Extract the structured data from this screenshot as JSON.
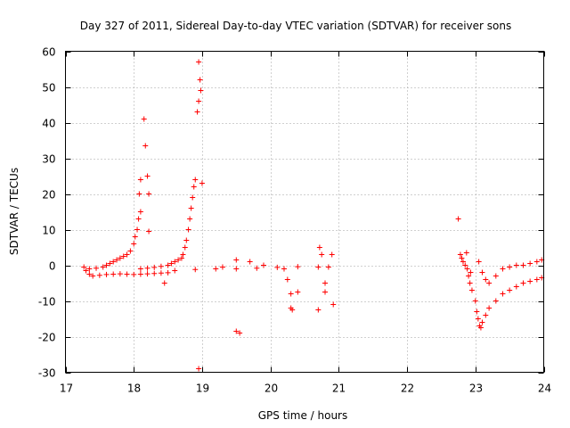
{
  "chart_data": {
    "type": "scatter",
    "title": "Day 327 of 2011, Sidereal Day-to-day VTEC variation (SDTVAR) for receiver sons",
    "xlabel": "GPS time / hours",
    "ylabel": "SDTVAR / TECUs",
    "xlim": [
      17,
      24
    ],
    "ylim": [
      -30,
      60
    ],
    "xticks": [
      17,
      18,
      19,
      20,
      21,
      22,
      23,
      24
    ],
    "yticks": [
      -30,
      -20,
      -10,
      0,
      10,
      20,
      30,
      40,
      50,
      60
    ],
    "grid": true,
    "marker": "+",
    "color": "#ff0000",
    "series": [
      {
        "name": "SDTVAR",
        "points": [
          [
            17.27,
            -0.5
          ],
          [
            17.3,
            -1.5
          ],
          [
            17.35,
            -2.5
          ],
          [
            17.4,
            -3
          ],
          [
            17.5,
            -2.8
          ],
          [
            17.6,
            -2.6
          ],
          [
            17.7,
            -2.5
          ],
          [
            17.8,
            -2.4
          ],
          [
            17.9,
            -2.5
          ],
          [
            18.0,
            -2.6
          ],
          [
            18.1,
            -2.5
          ],
          [
            18.2,
            -2.4
          ],
          [
            18.3,
            -2.3
          ],
          [
            18.4,
            -2.2
          ],
          [
            18.5,
            -2.1
          ],
          [
            17.35,
            -1
          ],
          [
            17.45,
            -0.8
          ],
          [
            17.55,
            -0.5
          ],
          [
            17.6,
            0
          ],
          [
            17.65,
            0.5
          ],
          [
            17.7,
            1
          ],
          [
            17.75,
            1.5
          ],
          [
            17.8,
            2
          ],
          [
            17.85,
            2.5
          ],
          [
            17.9,
            3
          ],
          [
            17.95,
            4
          ],
          [
            18.0,
            6
          ],
          [
            18.02,
            8
          ],
          [
            18.05,
            10
          ],
          [
            18.07,
            13
          ],
          [
            18.1,
            15
          ],
          [
            18.08,
            20
          ],
          [
            18.1,
            24
          ],
          [
            18.15,
            41
          ],
          [
            18.17,
            33.5
          ],
          [
            18.2,
            25
          ],
          [
            18.22,
            20
          ],
          [
            18.22,
            9.5
          ],
          [
            18.45,
            -5
          ],
          [
            18.1,
            -1
          ],
          [
            18.2,
            -0.8
          ],
          [
            18.3,
            -0.6
          ],
          [
            18.4,
            -0.3
          ],
          [
            18.5,
            0
          ],
          [
            18.55,
            0.5
          ],
          [
            18.6,
            1
          ],
          [
            18.65,
            1.5
          ],
          [
            18.7,
            2
          ],
          [
            18.72,
            3
          ],
          [
            18.75,
            5
          ],
          [
            18.77,
            7
          ],
          [
            18.8,
            10
          ],
          [
            18.82,
            13
          ],
          [
            18.84,
            16
          ],
          [
            18.86,
            19
          ],
          [
            18.88,
            22
          ],
          [
            18.9,
            24
          ],
          [
            18.93,
            43
          ],
          [
            18.95,
            46
          ],
          [
            18.95,
            57
          ],
          [
            18.97,
            52
          ],
          [
            18.98,
            49
          ],
          [
            19.0,
            23
          ],
          [
            18.95,
            -29
          ],
          [
            18.6,
            -1.5
          ],
          [
            18.9,
            -1.2
          ],
          [
            19.2,
            -1.0
          ],
          [
            19.5,
            -1.0
          ],
          [
            19.8,
            -0.8
          ],
          [
            20.1,
            -0.6
          ],
          [
            20.4,
            -0.4
          ],
          [
            20.7,
            -0.5
          ],
          [
            20.85,
            -0.5
          ],
          [
            19.3,
            -0.5
          ],
          [
            19.5,
            1.5
          ],
          [
            19.55,
            -19
          ],
          [
            19.5,
            -18.5
          ],
          [
            19.7,
            1
          ],
          [
            19.9,
            0
          ],
          [
            20.2,
            -1
          ],
          [
            20.25,
            -4
          ],
          [
            20.3,
            -8
          ],
          [
            20.3,
            -12
          ],
          [
            20.32,
            -12.5
          ],
          [
            20.4,
            -7.5
          ],
          [
            20.7,
            -12.5
          ],
          [
            20.75,
            3
          ],
          [
            20.72,
            5
          ],
          [
            20.8,
            -5
          ],
          [
            20.8,
            -7.5
          ],
          [
            20.9,
            3
          ],
          [
            20.92,
            -11
          ],
          [
            22.75,
            13
          ],
          [
            22.78,
            3
          ],
          [
            22.8,
            2
          ],
          [
            22.82,
            1
          ],
          [
            22.85,
            0
          ],
          [
            22.88,
            -1
          ],
          [
            22.9,
            -3
          ],
          [
            22.92,
            -5
          ],
          [
            22.95,
            -7
          ],
          [
            22.87,
            3.5
          ],
          [
            22.93,
            -2
          ],
          [
            23.0,
            -10
          ],
          [
            23.02,
            -13
          ],
          [
            23.04,
            -15
          ],
          [
            23.06,
            -17
          ],
          [
            23.08,
            -17.5
          ],
          [
            23.1,
            -16
          ],
          [
            23.15,
            -14
          ],
          [
            23.2,
            -12
          ],
          [
            23.3,
            -10
          ],
          [
            23.4,
            -8
          ],
          [
            23.5,
            -7
          ],
          [
            23.6,
            -6
          ],
          [
            23.7,
            -5
          ],
          [
            23.8,
            -4.5
          ],
          [
            23.9,
            -4
          ],
          [
            23.97,
            -3.5
          ],
          [
            23.05,
            1
          ],
          [
            23.1,
            -2
          ],
          [
            23.15,
            -4
          ],
          [
            23.2,
            -5
          ],
          [
            23.3,
            -3
          ],
          [
            23.4,
            -1
          ],
          [
            23.5,
            -0.5
          ],
          [
            23.6,
            0
          ],
          [
            23.7,
            0
          ],
          [
            23.8,
            0.5
          ],
          [
            23.9,
            1
          ],
          [
            23.97,
            1.5
          ]
        ]
      }
    ]
  }
}
